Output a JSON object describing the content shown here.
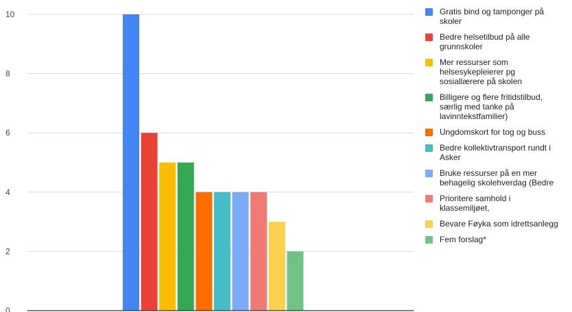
{
  "chart_data": {
    "type": "bar",
    "categories": [
      "Gratis bind og tamponger på skoler",
      "Bedre helsetilbud på alle grunnskoler",
      "Mer ressurser som helsesykepleierer pg sosiallærere på skolen",
      "Billigere og flere fritidstilbud, særlig med tanke på lavinntekstfamilier)",
      "Ungdomskort for tog og buss",
      "Bedre kollektivtransport rundt i Asker",
      "Bruke ressurser på en mer behagelig skolehverdag (Bedre",
      "Prioritere samhold i klassemiljøet,",
      "Bevare Føyka som idrettsanlegg",
      "Fem forslag*"
    ],
    "values": [
      10,
      6,
      5,
      5,
      4,
      4,
      4,
      4,
      3,
      2
    ],
    "colors": [
      "#4285F4",
      "#EA4335",
      "#FBBC04",
      "#34A853",
      "#FF6D01",
      "#46BDC6",
      "#7BAAF7",
      "#F07B72",
      "#FCD04F",
      "#71C287"
    ],
    "ylim": [
      0,
      10
    ],
    "yticks": [
      0,
      2,
      4,
      6,
      8,
      10
    ],
    "grid": true,
    "legend_position": "right",
    "legend": [
      "Gratis bind og tamponger på\nskoler",
      "Bedre helsetilbud på alle\ngrunnskoler",
      "Mer ressurser som\nhelsesykepleierer pg\nsosiallærere på skolen",
      "Billigere og flere fritidstilbud,\nsærlig med tanke på\nlavinntekstfamilier)",
      "Ungdomskort for tog og buss",
      "Bedre kollektivtransport rundt i\nAsker",
      "Bruke ressurser på en mer\nbehagelig skolehverdag (Bedre",
      "Prioritere samhold i\nklassemiljøet,",
      "Bevare Føyka som idrettsanlegg",
      "Fem forslag*"
    ]
  }
}
